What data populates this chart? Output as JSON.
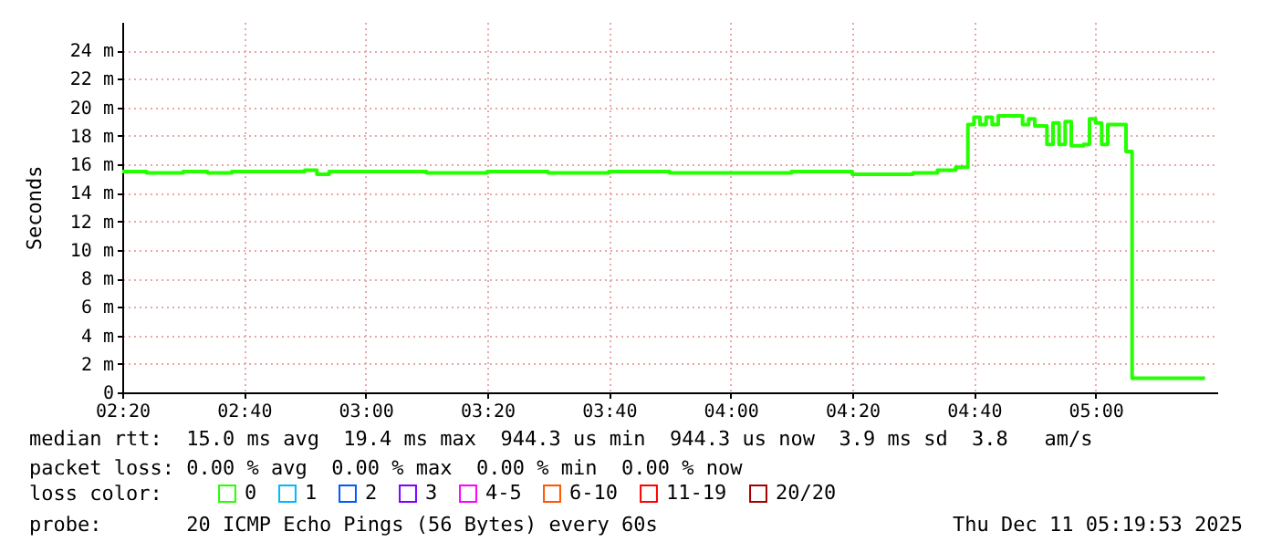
{
  "chart_data": {
    "type": "step",
    "ylabel": "Seconds",
    "x": [
      "2025-12-11T02:20",
      "2025-12-11T02:24",
      "2025-12-11T02:30",
      "2025-12-11T02:34",
      "2025-12-11T02:38",
      "2025-12-11T02:45",
      "2025-12-11T02:50",
      "2025-12-11T02:52",
      "2025-12-11T02:54",
      "2025-12-11T03:00",
      "2025-12-11T03:10",
      "2025-12-11T03:20",
      "2025-12-11T03:30",
      "2025-12-11T03:40",
      "2025-12-11T03:50",
      "2025-12-11T04:00",
      "2025-12-11T04:10",
      "2025-12-11T04:20",
      "2025-12-11T04:30",
      "2025-12-11T04:34",
      "2025-12-11T04:37",
      "2025-12-11T04:39",
      "2025-12-11T04:40",
      "2025-12-11T04:41",
      "2025-12-11T04:42",
      "2025-12-11T04:43",
      "2025-12-11T04:44",
      "2025-12-11T04:48",
      "2025-12-11T04:49",
      "2025-12-11T04:50",
      "2025-12-11T04:52",
      "2025-12-11T04:53",
      "2025-12-11T04:54",
      "2025-12-11T04:55",
      "2025-12-11T04:56",
      "2025-12-11T04:58",
      "2025-12-11T04:59",
      "2025-12-11T05:00",
      "2025-12-11T05:01",
      "2025-12-11T05:02",
      "2025-12-11T05:05",
      "2025-12-11T05:06",
      "2025-12-11T05:18"
    ],
    "series": [
      {
        "name": "0",
        "color": "#26ff00",
        "values": [
          15.5,
          15.4,
          15.5,
          15.4,
          15.5,
          15.5,
          15.6,
          15.3,
          15.5,
          15.5,
          15.4,
          15.5,
          15.4,
          15.5,
          15.4,
          15.4,
          15.5,
          15.3,
          15.4,
          15.6,
          15.8,
          18.8,
          19.3,
          18.8,
          19.3,
          18.8,
          19.4,
          18.8,
          19.2,
          18.7,
          17.4,
          18.9,
          17.4,
          19.0,
          17.3,
          17.4,
          19.2,
          18.9,
          17.4,
          18.8,
          16.9,
          1.0,
          1.0
        ]
      },
      {
        "name": "1",
        "color": "#00b8ff",
        "values": [
          null,
          null,
          null,
          null,
          null,
          null,
          null,
          null,
          null,
          null,
          null,
          null,
          null,
          null,
          null,
          null,
          null,
          null,
          null,
          null,
          null,
          null,
          null,
          null,
          null,
          null,
          null,
          null,
          null,
          null,
          null,
          null,
          null,
          null,
          null,
          null,
          null,
          null,
          null,
          null,
          null,
          null,
          null
        ]
      },
      {
        "name": "2",
        "color": "#0059ff",
        "values": [
          null,
          null,
          null,
          null,
          null,
          null,
          null,
          null,
          null,
          null,
          null,
          null,
          null,
          null,
          null,
          null,
          null,
          null,
          null,
          null,
          null,
          null,
          null,
          null,
          null,
          null,
          null,
          null,
          null,
          null,
          null,
          null,
          null,
          null,
          null,
          null,
          null,
          null,
          null,
          null,
          null,
          null,
          null
        ]
      },
      {
        "name": "3",
        "color": "#7e00ff",
        "values": [
          null,
          null,
          null,
          null,
          null,
          null,
          null,
          null,
          null,
          null,
          null,
          null,
          null,
          null,
          null,
          null,
          null,
          null,
          null,
          null,
          null,
          null,
          null,
          null,
          null,
          null,
          null,
          null,
          null,
          null,
          null,
          null,
          null,
          null,
          null,
          null,
          null,
          null,
          null,
          null,
          null,
          null,
          null
        ]
      },
      {
        "name": "4-5",
        "color": "#ff00ff",
        "values": [
          null,
          null,
          null,
          null,
          null,
          null,
          null,
          null,
          null,
          null,
          null,
          null,
          null,
          null,
          null,
          null,
          null,
          null,
          null,
          null,
          null,
          null,
          null,
          null,
          null,
          null,
          null,
          null,
          null,
          null,
          null,
          null,
          null,
          null,
          null,
          null,
          null,
          null,
          null,
          null,
          null,
          null,
          null
        ]
      },
      {
        "name": "6-10",
        "color": "#ff5500",
        "values": [
          null,
          null,
          null,
          null,
          null,
          null,
          null,
          null,
          null,
          null,
          null,
          null,
          null,
          null,
          null,
          null,
          null,
          null,
          null,
          null,
          null,
          null,
          null,
          null,
          null,
          null,
          null,
          null,
          null,
          null,
          null,
          null,
          null,
          null,
          null,
          null,
          null,
          null,
          null,
          null,
          null,
          null,
          null
        ]
      },
      {
        "name": "11-19",
        "color": "#ff0000",
        "values": [
          null,
          null,
          null,
          null,
          null,
          null,
          null,
          null,
          null,
          null,
          null,
          null,
          null,
          null,
          null,
          null,
          null,
          null,
          null,
          null,
          null,
          null,
          null,
          null,
          null,
          null,
          null,
          null,
          null,
          null,
          null,
          null,
          null,
          null,
          null,
          null,
          null,
          null,
          null,
          null,
          null,
          null,
          null
        ]
      },
      {
        "name": "20/20",
        "color": "#a10000",
        "values": [
          null,
          null,
          null,
          null,
          null,
          null,
          null,
          null,
          null,
          null,
          null,
          null,
          null,
          null,
          null,
          null,
          null,
          null,
          null,
          null,
          null,
          null,
          null,
          null,
          null,
          null,
          null,
          null,
          null,
          null,
          null,
          null,
          null,
          null,
          null,
          null,
          null,
          null,
          null,
          null,
          null,
          null,
          null
        ]
      }
    ],
    "xlim": [
      "2025-12-11T02:20",
      "2025-12-11T05:20"
    ],
    "xticks": [
      {
        "value": "2025-12-11T02:20",
        "label": "02:20"
      },
      {
        "value": "2025-12-11T02:40",
        "label": "02:40"
      },
      {
        "value": "2025-12-11T03:00",
        "label": "03:00"
      },
      {
        "value": "2025-12-11T03:20",
        "label": "03:20"
      },
      {
        "value": "2025-12-11T03:40",
        "label": "03:40"
      },
      {
        "value": "2025-12-11T04:00",
        "label": "04:00"
      },
      {
        "value": "2025-12-11T04:20",
        "label": "04:20"
      },
      {
        "value": "2025-12-11T04:40",
        "label": "04:40"
      },
      {
        "value": "2025-12-11T05:00",
        "label": "05:00"
      }
    ],
    "ylim": [
      0,
      26
    ],
    "yticks": [
      0,
      {
        "value": 2,
        "label": "2 m"
      },
      {
        "value": 4,
        "label": "4 m"
      },
      {
        "value": 6,
        "label": "6 m"
      },
      {
        "value": 8,
        "label": "8 m"
      },
      {
        "value": 10,
        "label": "10 m"
      },
      {
        "value": 12,
        "label": "12 m"
      },
      {
        "value": 14,
        "label": "14 m"
      },
      {
        "value": 16,
        "label": "16 m"
      },
      {
        "value": 18,
        "label": "18 m"
      },
      {
        "value": 20,
        "label": "20 m"
      },
      {
        "value": 22,
        "label": "22 m"
      },
      {
        "value": 24,
        "label": "24 m"
      }
    ],
    "grid": true,
    "marker": "none",
    "line_style": "solid",
    "legend": "bottom",
    "legend_title": "loss color:",
    "annotations": [
      "median rtt:  15.0 ms avg  19.4 ms max  944.3 us min  944.3 us now  3.9 ms sd  3.8   am/s",
      "packet loss: 0.00 % avg  0.00 % max  0.00 % min  0.00 % now",
      "probe:       20 ICMP Echo Pings (56 Bytes) every 60s",
      "Thu Dec 11 05:19:53 2025"
    ]
  }
}
